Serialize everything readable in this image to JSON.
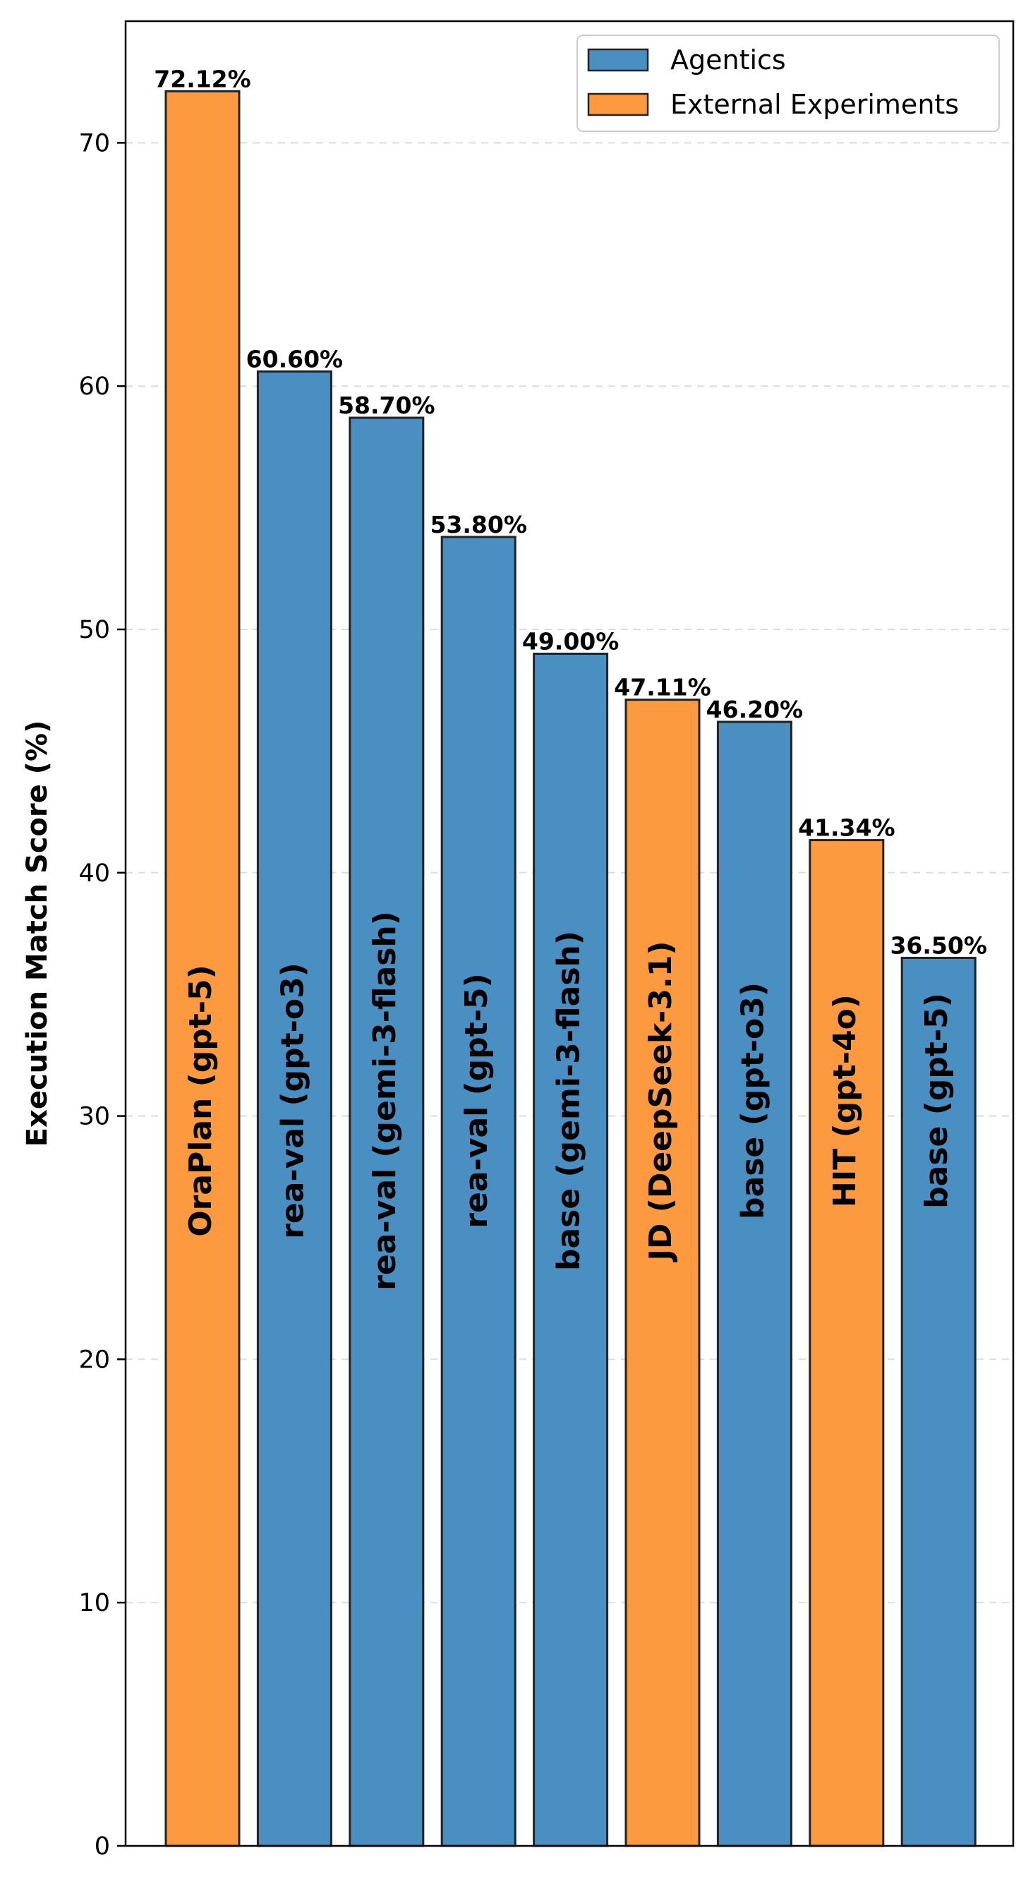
{
  "chart_data": {
    "type": "bar",
    "title": "",
    "xlabel": "",
    "ylabel": "Execution Match Score (%)",
    "ylim": [
      0,
      75
    ],
    "yticks": [
      0,
      10,
      20,
      30,
      40,
      50,
      60,
      70
    ],
    "grid": "horizontal dashed",
    "legend_position": "top-right",
    "legend": [
      {
        "name": "Agentics",
        "color": "#4a8fc2"
      },
      {
        "name": "External Experiments",
        "color": "#fd9a40"
      }
    ],
    "bars": [
      {
        "label": "OraPlan (gpt-5)",
        "value": 72.12,
        "value_label": "72.12%",
        "group": "External Experiments"
      },
      {
        "label": "rea-val (gpt-o3)",
        "value": 60.6,
        "value_label": "60.60%",
        "group": "Agentics"
      },
      {
        "label": "rea-val (gemi-3-flash)",
        "value": 58.7,
        "value_label": "58.70%",
        "group": "Agentics"
      },
      {
        "label": "rea-val (gpt-5)",
        "value": 53.8,
        "value_label": "53.80%",
        "group": "Agentics"
      },
      {
        "label": "base (gemi-3-flash)",
        "value": 49.0,
        "value_label": "49.00%",
        "group": "Agentics"
      },
      {
        "label": "JD (DeepSeek-3.1)",
        "value": 47.11,
        "value_label": "47.11%",
        "group": "External Experiments"
      },
      {
        "label": "base (gpt-o3)",
        "value": 46.2,
        "value_label": "46.20%",
        "group": "Agentics"
      },
      {
        "label": "HIT (gpt-4o)",
        "value": 41.34,
        "value_label": "41.34%",
        "group": "External Experiments"
      },
      {
        "label": "base (gpt-5)",
        "value": 36.5,
        "value_label": "36.50%",
        "group": "Agentics"
      }
    ]
  }
}
